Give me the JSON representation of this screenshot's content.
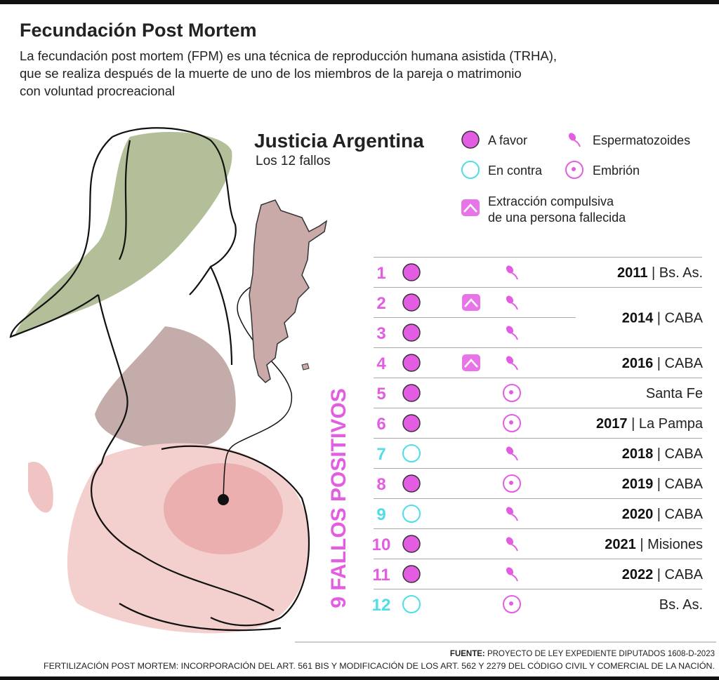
{
  "header": {
    "title": "Fecundación Post Mortem",
    "description": [
      "La fecundación post mortem (FPM) es una técnica de reproducción humana asistida (TRHA),",
      "que se realiza después de la muerte de uno de los miembros de la pareja o matrimonio",
      "con voluntad procreacional"
    ]
  },
  "section": {
    "title": "Justicia Argentina",
    "subtitle": "Los 12 fallos",
    "side_label": "9 FALLOS POSITIVOS"
  },
  "legend": {
    "favor": "A favor",
    "contra": "En contra",
    "sperm": "Espermatozoides",
    "embryo": "Embrión",
    "extraction": [
      "Extracción compulsiva",
      "de una persona fallecida"
    ]
  },
  "colors": {
    "favor": "#e35de3",
    "contra": "#4fdde6"
  },
  "table": {
    "separator": "|",
    "rows": [
      {
        "number": "1",
        "verdict": "A favor",
        "method": "Espermatozoides",
        "extraction": false,
        "year": "2011",
        "place": "Bs. As."
      },
      {
        "number": "2",
        "verdict": "A favor",
        "method": "Espermatozoides",
        "extraction": true,
        "year": "2014",
        "place": "CABA"
      },
      {
        "number": "3",
        "verdict": "A favor",
        "method": "Espermatozoides",
        "extraction": false
      },
      {
        "number": "4",
        "verdict": "A favor",
        "method": "Espermatozoides",
        "extraction": true,
        "year": "2016",
        "place": "CABA"
      },
      {
        "number": "5",
        "verdict": "A favor",
        "method": "Embrión",
        "extraction": false,
        "place": "Santa Fe"
      },
      {
        "number": "6",
        "verdict": "A favor",
        "method": "Embrión",
        "extraction": false,
        "year": "2017",
        "place": "La Pampa"
      },
      {
        "number": "7",
        "verdict": "En contra",
        "method": "Espermatozoides",
        "extraction": false,
        "year": "2018",
        "place": "CABA"
      },
      {
        "number": "8",
        "verdict": "A favor",
        "method": "Embrión",
        "extraction": false,
        "year": "2019",
        "place": "CABA"
      },
      {
        "number": "9",
        "verdict": "En contra",
        "method": "Espermatozoides",
        "extraction": false,
        "year": "2020",
        "place": "CABA"
      },
      {
        "number": "10",
        "verdict": "A favor",
        "method": "Espermatozoides",
        "extraction": false,
        "year": "2021",
        "place": "Misiones"
      },
      {
        "number": "11",
        "verdict": "A favor",
        "method": "Espermatozoides",
        "extraction": false,
        "year": "2022",
        "place": "CABA"
      },
      {
        "number": "12",
        "verdict": "En contra",
        "method": "Embrión",
        "extraction": false,
        "place": "Bs. As."
      }
    ]
  },
  "footer": {
    "source_label": "FUENTE:",
    "source": " PROYECTO DE LEY EXPEDIENTE DIPUTADOS 1608-D-2023",
    "note": "FERTILIZACIÓN POST MORTEM: INCORPORACIÓN DEL ART. 561 BIS Y MODIFICACIÓN DE LOS ART. 562 Y 2279 DEL CÓDIGO CIVIL Y COMERCIAL DE LA NACIÓN."
  }
}
